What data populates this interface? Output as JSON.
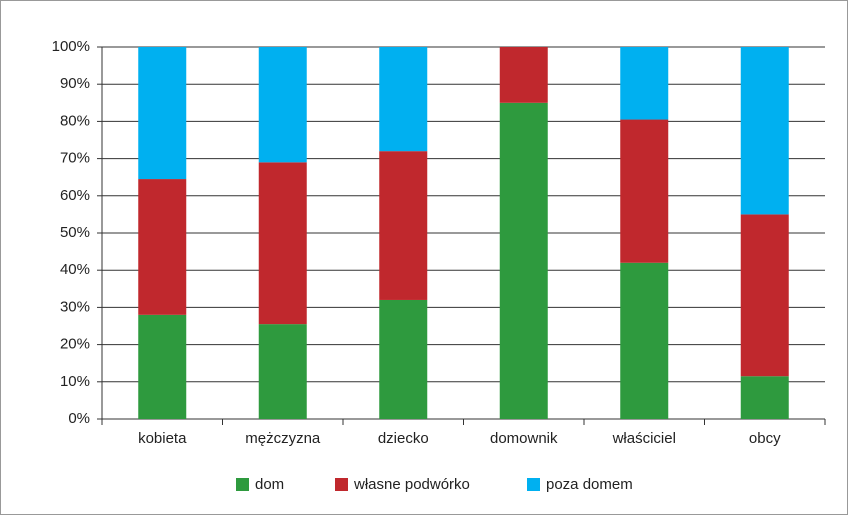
{
  "chart_data": {
    "type": "stacked_bar",
    "categories": [
      "kobieta",
      "mężczyzna",
      "dziecko",
      "domownik",
      "właściciel",
      "obcy"
    ],
    "series": [
      {
        "name": "dom",
        "color": "#2e9a3e",
        "values": [
          28,
          25.5,
          32,
          85,
          42,
          11.5
        ]
      },
      {
        "name": "własne podwórko",
        "color": "#c0282d",
        "values": [
          36.5,
          43.5,
          40,
          15,
          38.5,
          43.5
        ]
      },
      {
        "name": "poza domem",
        "color": "#00b0f0",
        "values": [
          35.5,
          31,
          28,
          0,
          19.5,
          45
        ]
      }
    ],
    "ylim": [
      0,
      100
    ],
    "yticks": [
      {
        "value": 0,
        "label": "0%"
      },
      {
        "value": 10,
        "label": "10%"
      },
      {
        "value": 20,
        "label": "20%"
      },
      {
        "value": 30,
        "label": "30%"
      },
      {
        "value": 40,
        "label": "40%"
      },
      {
        "value": 50,
        "label": "50%"
      },
      {
        "value": 60,
        "label": "60%"
      },
      {
        "value": 70,
        "label": "70%"
      },
      {
        "value": 80,
        "label": "80%"
      },
      {
        "value": 90,
        "label": "90%"
      },
      {
        "value": 100,
        "label": "100%"
      }
    ],
    "grid": true,
    "legend": "bottom"
  }
}
